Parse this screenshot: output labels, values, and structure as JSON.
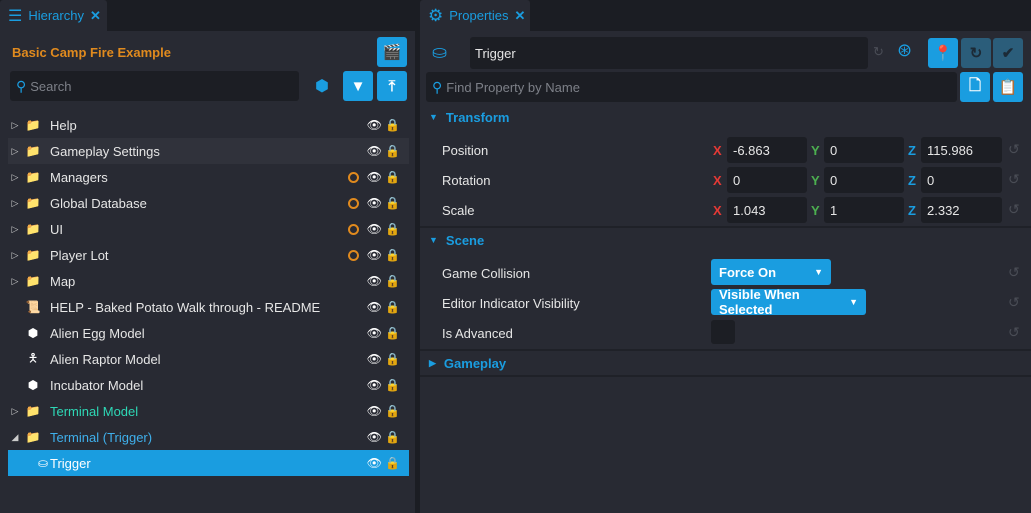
{
  "hierarchy": {
    "tab_label": "Hierarchy",
    "project_title": "Basic Camp Fire Example",
    "search_placeholder": "Search",
    "items": [
      {
        "label": "Help",
        "icon": "folder-icon",
        "expandable": true,
        "color": "#e6e6e6",
        "modified": false
      },
      {
        "label": "Gameplay Settings",
        "icon": "folder-icon",
        "expandable": true,
        "color": "#e6e6e6",
        "modified": false
      },
      {
        "label": "Managers",
        "icon": "folder-icon",
        "expandable": true,
        "color": "#e6e6e6",
        "modified": true
      },
      {
        "label": "Global Database",
        "icon": "folder-icon",
        "expandable": true,
        "color": "#e6e6e6",
        "modified": true
      },
      {
        "label": "UI",
        "icon": "folder-icon",
        "expandable": true,
        "color": "#e6e6e6",
        "modified": true
      },
      {
        "label": "Player Lot",
        "icon": "networked-folder-icon",
        "expandable": true,
        "color": "#e6e6e6",
        "modified": true
      },
      {
        "label": "Map",
        "icon": "folder-icon",
        "expandable": true,
        "color": "#e6e6e6",
        "modified": false
      },
      {
        "label": "HELP - Baked Potato Walk through - README",
        "icon": "script-icon",
        "expandable": false,
        "color": "#e6e6e6",
        "modified": false
      },
      {
        "label": "Alien Egg Model",
        "icon": "cube-icon",
        "expandable": false,
        "color": "#e6e6e6",
        "modified": false
      },
      {
        "label": "Alien Raptor Model",
        "icon": "person-icon",
        "expandable": false,
        "color": "#e6e6e6",
        "modified": false
      },
      {
        "label": "Incubator Model",
        "icon": "cube-icon",
        "expandable": false,
        "color": "#e6e6e6",
        "modified": false
      },
      {
        "label": "Terminal Model",
        "icon": "template-folder-icon",
        "expandable": true,
        "color": "#2ed8b6",
        "modified": false
      },
      {
        "label": "Terminal (Trigger)",
        "icon": "template-folder-icon",
        "expandable": true,
        "expanded": true,
        "color": "#3fb0ec",
        "modified": false
      },
      {
        "label": "Trigger",
        "icon": "trigger-icon",
        "expandable": false,
        "color": "#ffffff",
        "modified": false,
        "selected": true,
        "locked": true
      }
    ]
  },
  "properties": {
    "tab_label": "Properties",
    "object_name": "Trigger",
    "find_placeholder": "Find Property by Name",
    "transform": {
      "title": "Transform",
      "position": {
        "label": "Position",
        "x": "-6.863",
        "y": "0",
        "z": "115.986"
      },
      "rotation": {
        "label": "Rotation",
        "x": "0",
        "y": "0",
        "z": "0"
      },
      "scale": {
        "label": "Scale",
        "x": "1.043",
        "y": "1",
        "z": "2.332"
      },
      "axes": {
        "x": "X",
        "y": "Y",
        "z": "Z"
      }
    },
    "scene": {
      "title": "Scene",
      "game_collision_label": "Game Collision",
      "game_collision_value": "Force On",
      "editor_indicator_label": "Editor Indicator Visibility",
      "editor_indicator_value": "Visible When Selected",
      "is_advanced_label": "Is Advanced",
      "is_advanced": false
    },
    "gameplay": {
      "title": "Gameplay"
    }
  },
  "colors": {
    "accent": "#1a9de0",
    "orange": "#e08a1e",
    "x_axis": "#e53935",
    "y_axis": "#4caf50",
    "z_axis": "#1a9de0"
  }
}
